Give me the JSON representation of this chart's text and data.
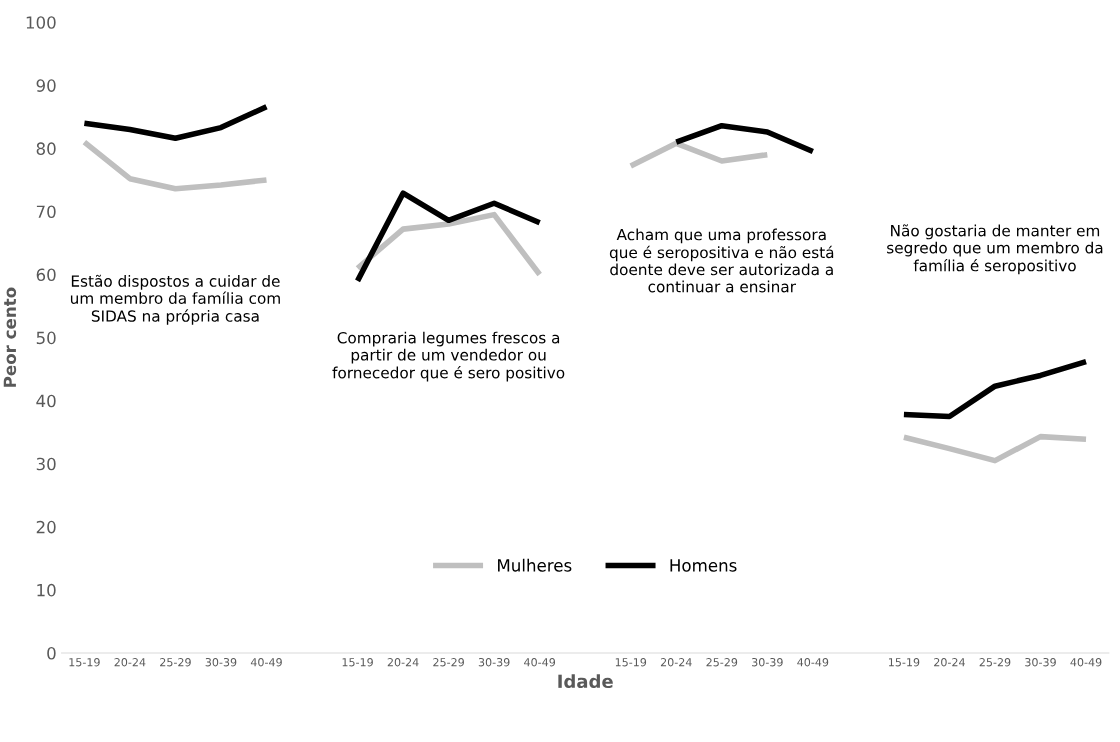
{
  "chart_data": {
    "type": "line",
    "categories": [
      "15-19",
      "20-24",
      "25-29",
      "30-39",
      "40-49",
      null,
      "15-19",
      "20-24",
      "25-29",
      "30-39",
      "40-49",
      null,
      "15-19",
      "20-24",
      "25-29",
      "30-39",
      "40-49",
      null,
      "15-19",
      "20-24",
      "25-29",
      "30-39",
      "40-49"
    ],
    "series": [
      {
        "name": "Mulheres",
        "color": "#bfbfbf",
        "values": [
          81,
          75.2,
          73.6,
          74.2,
          75,
          null,
          61,
          67.2,
          68,
          69.5,
          60,
          null,
          77.2,
          80.8,
          78,
          79,
          null,
          null,
          34.2,
          32.4,
          30.5,
          34.3,
          33.9
        ]
      },
      {
        "name": "Homens",
        "color": "#000000",
        "values": [
          84,
          83,
          81.6,
          83.3,
          86.6,
          null,
          59,
          72.9,
          68.6,
          71.3,
          68.2,
          null,
          null,
          81,
          83.6,
          82.6,
          79.5,
          null,
          37.8,
          37.5,
          42.3,
          44,
          46.2
        ]
      }
    ],
    "xlabel": "Idade",
    "ylabel": "Peor cento",
    "ylim": [
      0,
      100
    ],
    "yticks": [
      0,
      10,
      20,
      30,
      40,
      50,
      60,
      70,
      80,
      90,
      100
    ],
    "grid": false,
    "legend": "bottom",
    "line_style": "solid",
    "marker": "none",
    "annotations": [
      "Estão dispostos a cuidar de um membro da família com SIDAS na própria casa",
      "Compraria legumes frescos a partir de um vendedor ou fornecedor que é sero positivo",
      "Acham que uma professora que é seropositiva e não está doente deve ser autorizada a continuar a ensinar",
      "Não gostaria de manter em segredo que um membro da família é seropositivo"
    ]
  }
}
